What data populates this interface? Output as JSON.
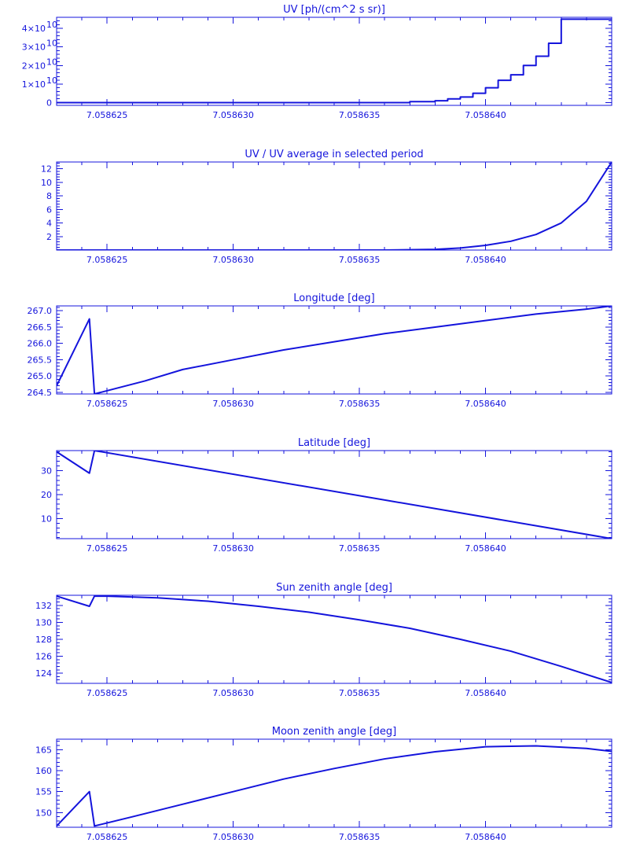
{
  "colors": {
    "foreground": "#1414dc",
    "background": "#ffffff"
  },
  "chart_data": [
    {
      "type": "line",
      "title": "UV [ph/(cm^2 s sr)]",
      "step": true,
      "x": [
        7.058623,
        7.058636,
        7.058637,
        7.058638,
        7.0586385,
        7.058639,
        7.0586395,
        7.05864,
        7.0586405,
        7.058641,
        7.0586415,
        7.058642,
        7.0586425,
        7.058643
      ],
      "values": [
        0,
        0,
        500000000.0,
        1000000000.0,
        2000000000.0,
        3000000000.0,
        5000000000.0,
        8000000000.0,
        12000000000.0,
        15000000000.0,
        20000000000.0,
        25000000000.0,
        32000000000.0,
        45000000000.0
      ],
      "xlim": [
        7.058623,
        7.058645
      ],
      "ylim": [
        -1500000000.0,
        46000000000.0
      ],
      "xticks": [
        "7.058625",
        "7.058630",
        "7.058635",
        "7.058640"
      ],
      "xtick_values": [
        7.058625,
        7.05863,
        7.058635,
        7.05864
      ],
      "yticks": [
        "0",
        "1×10",
        "2×10",
        "3×10",
        "4×10"
      ],
      "ytick_values": [
        0,
        10000000000.0,
        20000000000.0,
        30000000000.0,
        40000000000.0
      ],
      "ytick_exponent": "10"
    },
    {
      "type": "line",
      "title": "UV / UV average in selected period",
      "x": [
        7.058623,
        7.058636,
        7.058638,
        7.058639,
        7.05864,
        7.058641,
        7.058642,
        7.058643,
        7.058644,
        7.058645
      ],
      "values": [
        0,
        0,
        0.1,
        0.3,
        0.7,
        1.3,
        2.3,
        4.0,
        7.2,
        13
      ],
      "xlim": [
        7.058623,
        7.058645
      ],
      "ylim": [
        0,
        13
      ],
      "xticks": [
        "7.058625",
        "7.058630",
        "7.058635",
        "7.058640"
      ],
      "xtick_values": [
        7.058625,
        7.05863,
        7.058635,
        7.05864
      ],
      "yticks": [
        "2",
        "4",
        "6",
        "8",
        "10",
        "12"
      ],
      "ytick_values": [
        2,
        4,
        6,
        8,
        10,
        12
      ]
    },
    {
      "type": "line",
      "title": "Longitude [deg]",
      "x": [
        7.058623,
        7.0586243,
        7.0586245,
        7.0586265,
        7.058628,
        7.05863,
        7.058632,
        7.058634,
        7.058636,
        7.058638,
        7.05864,
        7.058642,
        7.058644,
        7.058645
      ],
      "values": [
        264.7,
        266.75,
        264.45,
        264.85,
        265.2,
        265.5,
        265.8,
        266.05,
        266.3,
        266.5,
        266.7,
        266.9,
        267.05,
        267.15
      ],
      "xlim": [
        7.058623,
        7.058645
      ],
      "ylim": [
        264.45,
        267.15
      ],
      "xticks": [
        "7.058625",
        "7.058630",
        "7.058635",
        "7.058640"
      ],
      "xtick_values": [
        7.058625,
        7.05863,
        7.058635,
        7.05864
      ],
      "yticks": [
        "264.5",
        "265.0",
        "265.5",
        "266.0",
        "266.5",
        "267.0"
      ],
      "ytick_values": [
        264.5,
        265,
        265.5,
        266,
        266.5,
        267
      ]
    },
    {
      "type": "line",
      "title": "Latitude [deg]",
      "x": [
        7.058623,
        7.0586243,
        7.0586245,
        7.058645
      ],
      "values": [
        38,
        29,
        38.5,
        1.5
      ],
      "xlim": [
        7.058623,
        7.058645
      ],
      "ylim": [
        1.5,
        38.5
      ],
      "xticks": [
        "7.058625",
        "7.058630",
        "7.058635",
        "7.058640"
      ],
      "xtick_values": [
        7.058625,
        7.05863,
        7.058635,
        7.05864
      ],
      "yticks": [
        "10",
        "20",
        "30"
      ],
      "ytick_values": [
        10,
        20,
        30
      ]
    },
    {
      "type": "line",
      "title": "Sun zenith angle [deg]",
      "x": [
        7.058623,
        7.0586243,
        7.0586245,
        7.058625,
        7.058627,
        7.058629,
        7.058631,
        7.058633,
        7.058635,
        7.058637,
        7.058639,
        7.058641,
        7.058643,
        7.058645
      ],
      "values": [
        133.1,
        131.9,
        133.1,
        133.1,
        132.9,
        132.5,
        131.9,
        131.2,
        130.3,
        129.3,
        128.0,
        126.6,
        124.8,
        122.9
      ],
      "xlim": [
        7.058623,
        7.058645
      ],
      "ylim": [
        122.8,
        133.2
      ],
      "xticks": [
        "7.058625",
        "7.058630",
        "7.058635",
        "7.058640"
      ],
      "xtick_values": [
        7.058625,
        7.05863,
        7.058635,
        7.05864
      ],
      "yticks": [
        "124",
        "126",
        "128",
        "130",
        "132"
      ],
      "ytick_values": [
        124,
        126,
        128,
        130,
        132
      ]
    },
    {
      "type": "line",
      "title": "Moon zenith angle [deg]",
      "x": [
        7.058623,
        7.0586243,
        7.0586245,
        7.058626,
        7.058628,
        7.05863,
        7.058632,
        7.058634,
        7.058636,
        7.058638,
        7.05864,
        7.058642,
        7.058644,
        7.058645
      ],
      "values": [
        146.8,
        155,
        146.8,
        149,
        152,
        155,
        158,
        160.5,
        162.8,
        164.5,
        165.7,
        165.9,
        165.3,
        164.6
      ],
      "xlim": [
        7.058623,
        7.058645
      ],
      "ylim": [
        146.5,
        167.5
      ],
      "xticks": [
        "7.058625",
        "7.058630",
        "7.058635",
        "7.058640"
      ],
      "xtick_values": [
        7.058625,
        7.05863,
        7.058635,
        7.05864
      ],
      "yticks": [
        "150",
        "155",
        "160",
        "165"
      ],
      "ytick_values": [
        150,
        155,
        160,
        165
      ]
    }
  ]
}
